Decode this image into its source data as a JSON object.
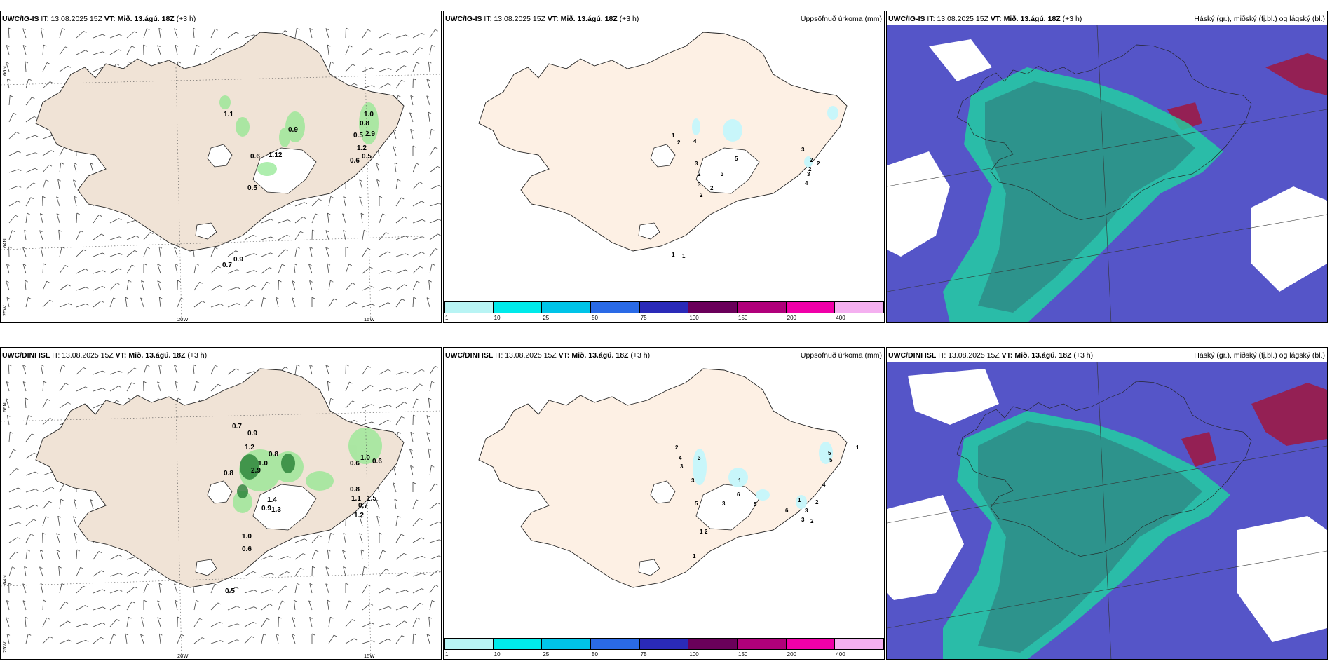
{
  "rows": [
    {
      "model": "UWC/IG-IS",
      "panels": {
        "wind": {
          "model": "UWC/IG-IS",
          "it_label": "IT:",
          "it_value": "13.08.2025 15Z",
          "vt_label": "VT:",
          "vt_value": "Mið. 13.ágú. 18Z",
          "lead": "(+3 h)",
          "values": [
            {
              "t": "1.1"
            },
            {
              "t": "0.9"
            },
            {
              "t": "1.0"
            },
            {
              "t": "0.8"
            },
            {
              "t": "0.5"
            },
            {
              "t": "2.9"
            },
            {
              "t": "1.2"
            },
            {
              "t": "0.5"
            },
            {
              "t": "0.6"
            },
            {
              "t": "0.6"
            },
            {
              "t": "1.12"
            },
            {
              "t": "0.5"
            },
            {
              "t": "0.9"
            },
            {
              "t": "0.7"
            }
          ]
        },
        "precip": {
          "model": "UWC/IG-IS",
          "it_label": "IT:",
          "it_value": "13.08.2025 15Z",
          "vt_label": "VT:",
          "vt_value": "Mið. 13.ágú. 18Z",
          "lead": "(+3 h)",
          "right_title": "Uppsöfnuð úrkoma (mm)",
          "numbers": [
            "1",
            "2",
            "4",
            "3",
            "2",
            "3",
            "2",
            "5",
            "3",
            "2",
            "3",
            "2",
            "2",
            "3",
            "2",
            "4",
            "1",
            "1"
          ]
        },
        "cloud": {
          "model": "UWC/IG-IS",
          "it_label": "IT:",
          "it_value": "13.08.2025 15Z",
          "vt_label": "VT:",
          "vt_value": "Mið. 13.ágú. 18Z",
          "lead": "(+3 h)",
          "right_title": "Háský (gr.), miðský (fj.bl.) og lágský (bl.)"
        }
      }
    },
    {
      "model": "UWC/DINI ISL",
      "panels": {
        "wind": {
          "model": "UWC/DINI ISL",
          "it_label": "IT:",
          "it_value": "13.08.2025 15Z",
          "vt_label": "VT:",
          "vt_value": "Mið. 13.ágú. 18Z",
          "lead": "(+3 h)",
          "values": [
            {
              "t": "0.7"
            },
            {
              "t": "0.9"
            },
            {
              "t": "0.8"
            },
            {
              "t": "1.2"
            },
            {
              "t": "1.0"
            },
            {
              "t": "0.8"
            },
            {
              "t": "2.9"
            },
            {
              "t": "1.4"
            },
            {
              "t": "0.9"
            },
            {
              "t": "1.3"
            },
            {
              "t": "1.0"
            },
            {
              "t": "0.6"
            },
            {
              "t": "0.6"
            },
            {
              "t": "1.0"
            },
            {
              "t": "0.6"
            },
            {
              "t": "0.8"
            },
            {
              "t": "1.1"
            },
            {
              "t": "1.5"
            },
            {
              "t": "0.7"
            },
            {
              "t": "1.2"
            },
            {
              "t": "0.5"
            }
          ]
        },
        "precip": {
          "model": "UWC/DINI ISL",
          "it_label": "IT:",
          "it_value": "13.08.2025 15Z",
          "vt_label": "VT:",
          "vt_value": "Mið. 13.ágú. 18Z",
          "lead": "(+3 h)",
          "right_title": "Uppsöfnuð úrkoma (mm)",
          "numbers": [
            "2",
            "4",
            "3",
            "3",
            "3",
            "5",
            "1",
            "6",
            "3",
            "5",
            "1",
            "2",
            "1",
            "6",
            "1",
            "2",
            "4",
            "3",
            "3",
            "2",
            "5",
            "5",
            "1"
          ]
        },
        "cloud": {
          "model": "UWC/DINI ISL",
          "it_label": "IT:",
          "it_value": "13.08.2025 15Z",
          "vt_label": "VT:",
          "vt_value": "Mið. 13.ágú. 18Z",
          "lead": "(+3 h)",
          "right_title": "Háský (gr.), miðský (fj.bl.) og lágský (bl.)"
        }
      }
    }
  ],
  "axis_labels": {
    "lat66": "66N",
    "lat64": "64N",
    "lon25": "25W",
    "lon20": "20W",
    "lon15": "15W"
  },
  "legend": {
    "labels": [
      "1",
      "10",
      "25",
      "50",
      "75",
      "100",
      "150",
      "200",
      "400"
    ],
    "colors": [
      "#b8f4f4",
      "#00eaea",
      "#00c4e8",
      "#2a6ae6",
      "#2a2ab8",
      "#6a005a",
      "#b0007a",
      "#f000a8",
      "#f4b0f0"
    ]
  },
  "colors": {
    "land": "#f0e3d6",
    "land_precip": "#fdf0e4",
    "precip_cyan": "#c8f6fa",
    "cloud_high": "#5555c8",
    "cloud_mid": "#2e8e88",
    "cloud_low": "#1fd6a0",
    "cloud_red": "#a01840"
  }
}
